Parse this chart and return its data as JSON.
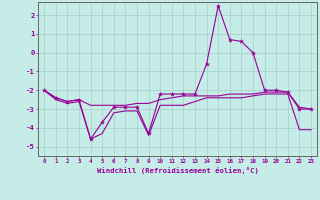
{
  "xlabel": "Windchill (Refroidissement éolien,°C)",
  "background_color": "#c5ece6",
  "grid_color": "#aad4ce",
  "line_color": "#990099",
  "x": [
    0,
    1,
    2,
    3,
    4,
    5,
    6,
    7,
    8,
    9,
    10,
    11,
    12,
    13,
    14,
    15,
    16,
    17,
    18,
    19,
    20,
    21,
    22,
    23
  ],
  "line1": [
    -2.0,
    -2.4,
    -2.6,
    -2.5,
    -4.6,
    -3.7,
    -2.9,
    -2.9,
    -2.9,
    -4.3,
    -2.2,
    -2.2,
    -2.2,
    -2.2,
    -0.6,
    2.5,
    0.7,
    0.6,
    0.0,
    -2.0,
    -2.0,
    -2.1,
    -3.0,
    -3.0
  ],
  "line2": [
    -2.0,
    -2.4,
    -2.6,
    -2.5,
    -2.8,
    -2.8,
    -2.8,
    -2.8,
    -2.7,
    -2.7,
    -2.5,
    -2.4,
    -2.3,
    -2.3,
    -2.3,
    -2.3,
    -2.2,
    -2.2,
    -2.2,
    -2.1,
    -2.1,
    -2.1,
    -2.9,
    -3.0
  ],
  "line3": [
    -2.0,
    -2.5,
    -2.7,
    -2.6,
    -4.6,
    -4.3,
    -3.2,
    -3.1,
    -3.1,
    -4.4,
    -2.8,
    -2.8,
    -2.8,
    -2.6,
    -2.4,
    -2.4,
    -2.4,
    -2.4,
    -2.3,
    -2.2,
    -2.2,
    -2.2,
    -4.1,
    -4.1
  ],
  "ylim": [
    -5.5,
    2.7
  ],
  "yticks": [
    -5,
    -4,
    -3,
    -2,
    -1,
    0,
    1,
    2
  ],
  "xticks": [
    0,
    1,
    2,
    3,
    4,
    5,
    6,
    7,
    8,
    9,
    10,
    11,
    12,
    13,
    14,
    15,
    16,
    17,
    18,
    19,
    20,
    21,
    22,
    23
  ]
}
